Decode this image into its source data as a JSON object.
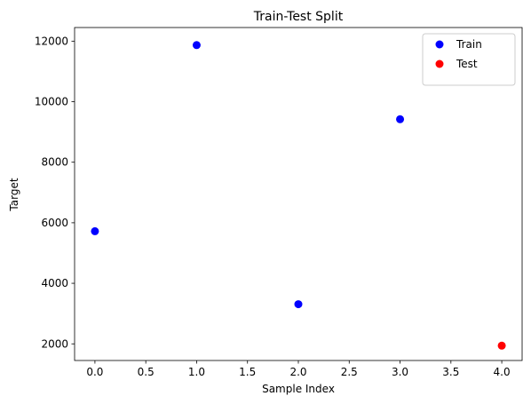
{
  "chart_data": {
    "type": "scatter",
    "title": "Train-Test Split",
    "xlabel": "Sample Index",
    "ylabel": "Target",
    "xlim": [
      -0.2,
      4.2
    ],
    "ylim": [
      1450,
      12450
    ],
    "xticks": [
      0.0,
      0.5,
      1.0,
      1.5,
      2.0,
      2.5,
      3.0,
      3.5,
      4.0
    ],
    "xtick_labels": [
      "0.0",
      "0.5",
      "1.0",
      "1.5",
      "2.0",
      "2.5",
      "3.0",
      "3.5",
      "4.0"
    ],
    "yticks": [
      2000,
      4000,
      6000,
      8000,
      10000,
      12000
    ],
    "ytick_labels": [
      "2000",
      "4000",
      "6000",
      "8000",
      "10000",
      "12000"
    ],
    "grid": false,
    "legend_position": "top-right",
    "series": [
      {
        "name": "Train",
        "color": "#0000ff",
        "x": [
          0,
          1,
          2,
          3
        ],
        "y": [
          5720,
          11870,
          3310,
          9420
        ]
      },
      {
        "name": "Test",
        "color": "#ff0000",
        "x": [
          4
        ],
        "y": [
          1940
        ]
      }
    ]
  }
}
